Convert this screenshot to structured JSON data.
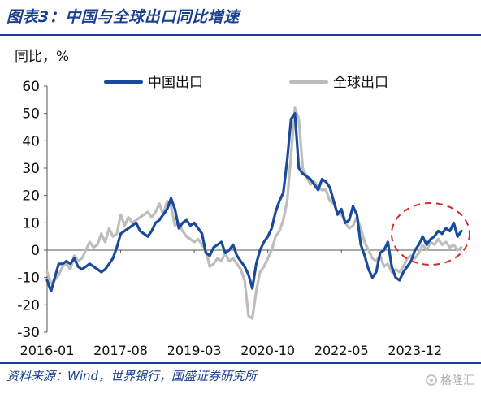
{
  "figure": {
    "title": "图表3：中国与全球出口同比增速",
    "source": "资料来源：Wind，世界银行，国盛证券研究所",
    "watermark": "格隆汇"
  },
  "chart_data": {
    "type": "line",
    "ylabel": "同比，%",
    "xlabel": "",
    "ylim": [
      -30,
      60
    ],
    "yticks": [
      -30,
      -20,
      -10,
      0,
      10,
      20,
      30,
      40,
      50,
      60
    ],
    "xlim": [
      "2016-01",
      "2024-12"
    ],
    "xtick_labels": [
      "2016-01",
      "2017-08",
      "2019-03",
      "2020-10",
      "2022-05",
      "2023-12"
    ],
    "legend_position": "top",
    "grid": false,
    "annotation": "dashed red circle highlighting the 2024 divergence",
    "colors": {
      "china": "#1a4a9a",
      "global": "#bdbdbd",
      "annotation": "#d42a2a"
    },
    "series": [
      {
        "name": "中国出口",
        "key": "china",
        "points": [
          [
            "2016-01",
            -11
          ],
          [
            "2016-02",
            -15
          ],
          [
            "2016-03",
            -10
          ],
          [
            "2016-04",
            -5
          ],
          [
            "2016-05",
            -5
          ],
          [
            "2016-06",
            -4
          ],
          [
            "2016-07",
            -5
          ],
          [
            "2016-08",
            -3
          ],
          [
            "2016-09",
            -6
          ],
          [
            "2016-10",
            -7
          ],
          [
            "2016-11",
            -6
          ],
          [
            "2016-12",
            -5
          ],
          [
            "2017-01",
            -6
          ],
          [
            "2017-02",
            -7
          ],
          [
            "2017-03",
            -8
          ],
          [
            "2017-04",
            -7
          ],
          [
            "2017-05",
            -5
          ],
          [
            "2017-06",
            -3
          ],
          [
            "2017-07",
            1
          ],
          [
            "2017-08",
            6
          ],
          [
            "2017-09",
            7
          ],
          [
            "2017-10",
            8
          ],
          [
            "2017-11",
            9
          ],
          [
            "2017-12",
            10
          ],
          [
            "2018-01",
            7
          ],
          [
            "2018-02",
            6
          ],
          [
            "2018-03",
            5
          ],
          [
            "2018-04",
            7
          ],
          [
            "2018-05",
            10
          ],
          [
            "2018-06",
            11
          ],
          [
            "2018-07",
            13
          ],
          [
            "2018-08",
            15
          ],
          [
            "2018-09",
            19
          ],
          [
            "2018-10",
            15
          ],
          [
            "2018-11",
            8
          ],
          [
            "2018-12",
            10
          ],
          [
            "2019-01",
            11
          ],
          [
            "2019-02",
            9
          ],
          [
            "2019-03",
            10
          ],
          [
            "2019-04",
            8
          ],
          [
            "2019-05",
            6
          ],
          [
            "2019-06",
            -1
          ],
          [
            "2019-07",
            -2
          ],
          [
            "2019-08",
            1
          ],
          [
            "2019-09",
            2
          ],
          [
            "2019-10",
            3
          ],
          [
            "2019-11",
            -1
          ],
          [
            "2019-12",
            0
          ],
          [
            "2020-01",
            2
          ],
          [
            "2020-02",
            -2
          ],
          [
            "2020-03",
            -4
          ],
          [
            "2020-04",
            -6
          ],
          [
            "2020-05",
            -9
          ],
          [
            "2020-06",
            -14
          ],
          [
            "2020-07",
            -5
          ],
          [
            "2020-08",
            0
          ],
          [
            "2020-09",
            3
          ],
          [
            "2020-10",
            5
          ],
          [
            "2020-11",
            8
          ],
          [
            "2020-12",
            14
          ],
          [
            "2021-01",
            18
          ],
          [
            "2021-02",
            21
          ],
          [
            "2021-03",
            33
          ],
          [
            "2021-04",
            48
          ],
          [
            "2021-05",
            50
          ],
          [
            "2021-06",
            30
          ],
          [
            "2021-07",
            28
          ],
          [
            "2021-08",
            27
          ],
          [
            "2021-09",
            26
          ],
          [
            "2021-10",
            24
          ],
          [
            "2021-11",
            22
          ],
          [
            "2021-12",
            26
          ],
          [
            "2022-01",
            25
          ],
          [
            "2022-02",
            23
          ],
          [
            "2022-03",
            18
          ],
          [
            "2022-04",
            13
          ],
          [
            "2022-05",
            15
          ],
          [
            "2022-06",
            10
          ],
          [
            "2022-07",
            11
          ],
          [
            "2022-08",
            16
          ],
          [
            "2022-09",
            13
          ],
          [
            "2022-10",
            2
          ],
          [
            "2022-11",
            -2
          ],
          [
            "2022-12",
            -7
          ],
          [
            "2023-01",
            -10
          ],
          [
            "2023-02",
            -8
          ],
          [
            "2023-03",
            -1
          ],
          [
            "2023-04",
            0
          ],
          [
            "2023-05",
            3
          ],
          [
            "2023-06",
            -6
          ],
          [
            "2023-07",
            -10
          ],
          [
            "2023-08",
            -11
          ],
          [
            "2023-09",
            -8
          ],
          [
            "2023-10",
            -6
          ],
          [
            "2023-11",
            -4
          ],
          [
            "2023-12",
            0
          ],
          [
            "2024-01",
            2
          ],
          [
            "2024-02",
            5
          ],
          [
            "2024-03",
            2
          ],
          [
            "2024-04",
            4
          ],
          [
            "2024-05",
            5
          ],
          [
            "2024-06",
            7
          ],
          [
            "2024-07",
            6
          ],
          [
            "2024-08",
            8
          ],
          [
            "2024-09",
            7
          ],
          [
            "2024-10",
            10
          ],
          [
            "2024-11",
            5
          ],
          [
            "2024-12",
            7
          ]
        ]
      },
      {
        "name": "全球出口",
        "key": "global",
        "points": [
          [
            "2016-01",
            -8
          ],
          [
            "2016-02",
            -12
          ],
          [
            "2016-03",
            -11
          ],
          [
            "2016-04",
            -9
          ],
          [
            "2016-05",
            -6
          ],
          [
            "2016-06",
            -5
          ],
          [
            "2016-07",
            -7
          ],
          [
            "2016-08",
            -2
          ],
          [
            "2016-09",
            -4
          ],
          [
            "2016-10",
            -3
          ],
          [
            "2016-11",
            0
          ],
          [
            "2016-12",
            3
          ],
          [
            "2017-01",
            1
          ],
          [
            "2017-02",
            2
          ],
          [
            "2017-03",
            6
          ],
          [
            "2017-04",
            3
          ],
          [
            "2017-05",
            8
          ],
          [
            "2017-06",
            5
          ],
          [
            "2017-07",
            6
          ],
          [
            "2017-08",
            13
          ],
          [
            "2017-09",
            9
          ],
          [
            "2017-10",
            12
          ],
          [
            "2017-11",
            10
          ],
          [
            "2017-12",
            11
          ],
          [
            "2018-01",
            12
          ],
          [
            "2018-02",
            13
          ],
          [
            "2018-03",
            14
          ],
          [
            "2018-04",
            12
          ],
          [
            "2018-05",
            14
          ],
          [
            "2018-06",
            17
          ],
          [
            "2018-07",
            13
          ],
          [
            "2018-08",
            18
          ],
          [
            "2018-09",
            16
          ],
          [
            "2018-10",
            9
          ],
          [
            "2018-11",
            10
          ],
          [
            "2018-12",
            7
          ],
          [
            "2019-01",
            5
          ],
          [
            "2019-02",
            4
          ],
          [
            "2019-03",
            3
          ],
          [
            "2019-04",
            4
          ],
          [
            "2019-05",
            2
          ],
          [
            "2019-06",
            0
          ],
          [
            "2019-07",
            -6
          ],
          [
            "2019-08",
            -5
          ],
          [
            "2019-09",
            -3
          ],
          [
            "2019-10",
            -4
          ],
          [
            "2019-11",
            -1
          ],
          [
            "2019-12",
            -4
          ],
          [
            "2020-01",
            -3
          ],
          [
            "2020-02",
            -5
          ],
          [
            "2020-03",
            -7
          ],
          [
            "2020-04",
            -11
          ],
          [
            "2020-05",
            -24
          ],
          [
            "2020-06",
            -25
          ],
          [
            "2020-07",
            -15
          ],
          [
            "2020-08",
            -8
          ],
          [
            "2020-09",
            -6
          ],
          [
            "2020-10",
            -3
          ],
          [
            "2020-11",
            0
          ],
          [
            "2020-12",
            5
          ],
          [
            "2021-01",
            7
          ],
          [
            "2021-02",
            11
          ],
          [
            "2021-03",
            18
          ],
          [
            "2021-04",
            35
          ],
          [
            "2021-05",
            52
          ],
          [
            "2021-06",
            48
          ],
          [
            "2021-07",
            30
          ],
          [
            "2021-08",
            27
          ],
          [
            "2021-09",
            24
          ],
          [
            "2021-10",
            25
          ],
          [
            "2021-11",
            23
          ],
          [
            "2021-12",
            22
          ],
          [
            "2022-01",
            22
          ],
          [
            "2022-02",
            18
          ],
          [
            "2022-03",
            17
          ],
          [
            "2022-04",
            14
          ],
          [
            "2022-05",
            13
          ],
          [
            "2022-06",
            10
          ],
          [
            "2022-07",
            8
          ],
          [
            "2022-08",
            9
          ],
          [
            "2022-09",
            12
          ],
          [
            "2022-10",
            8
          ],
          [
            "2022-11",
            3
          ],
          [
            "2022-12",
            0
          ],
          [
            "2023-01",
            -3
          ],
          [
            "2023-02",
            -4
          ],
          [
            "2023-03",
            -2
          ],
          [
            "2023-04",
            -6
          ],
          [
            "2023-05",
            -5
          ],
          [
            "2023-06",
            -8
          ],
          [
            "2023-07",
            -7
          ],
          [
            "2023-08",
            -8
          ],
          [
            "2023-09",
            -6
          ],
          [
            "2023-10",
            -3
          ],
          [
            "2023-11",
            -2
          ],
          [
            "2023-12",
            -3
          ],
          [
            "2024-01",
            -1
          ],
          [
            "2024-02",
            2
          ],
          [
            "2024-03",
            0
          ],
          [
            "2024-04",
            3
          ],
          [
            "2024-05",
            2
          ],
          [
            "2024-06",
            4
          ],
          [
            "2024-07",
            2
          ],
          [
            "2024-08",
            3
          ],
          [
            "2024-09",
            1
          ],
          [
            "2024-10",
            2
          ],
          [
            "2024-11",
            0
          ],
          [
            "2024-12",
            1
          ]
        ]
      }
    ]
  }
}
